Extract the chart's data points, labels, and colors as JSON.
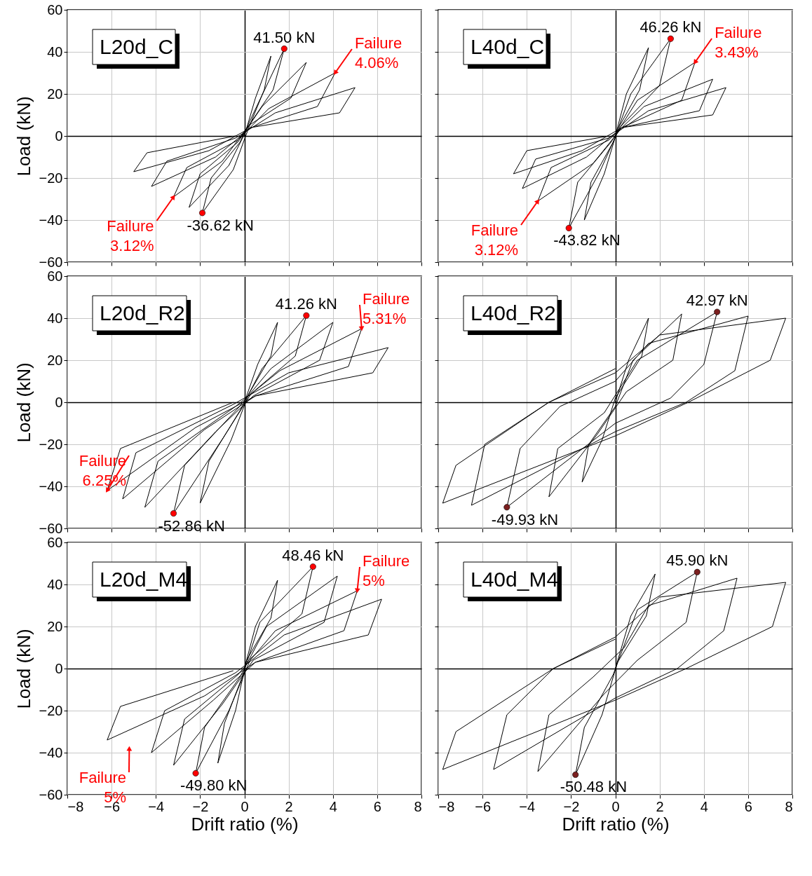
{
  "chart_data": [
    {
      "type": "line",
      "title": "L20d_C",
      "ylabel": "Load (kN)",
      "xlim": [
        -8,
        8
      ],
      "ylim": [
        -60,
        60
      ],
      "xticks": [
        -8,
        -6,
        -4,
        -2,
        0,
        2,
        4,
        6,
        8
      ],
      "yticks": [
        -60,
        -40,
        -20,
        0,
        20,
        40,
        60
      ],
      "grid": true,
      "tick_labels": "y",
      "series": [
        {
          "color": "#000000",
          "x": [
            0,
            0.5,
            1.2,
            0.9,
            0.2,
            -0.5,
            -1.9,
            -1.5,
            -0.2,
            0.6,
            1.8,
            1.3,
            0.2,
            -0.7,
            -2.5,
            -2.0,
            -0.3,
            0.8,
            2.8,
            2.1,
            0.2,
            -1,
            -3.2,
            -2.6,
            -0.3,
            1.1,
            4.1,
            3.3,
            0.3,
            -1.3,
            -4.2,
            -3.5,
            -0.4,
            1.4,
            5,
            4.3,
            0.3,
            -1.6,
            -5,
            -4.4,
            -0.4
          ],
          "values": [
            0,
            18,
            38,
            22,
            4,
            -16,
            -36.62,
            -20,
            -3,
            15,
            41.5,
            22,
            5,
            -14,
            -34,
            -18,
            -3,
            14,
            35,
            18,
            5,
            -12,
            -29,
            -15,
            -2,
            13,
            30,
            14,
            4,
            -10,
            -24,
            -12,
            -1,
            11,
            23,
            11,
            4,
            -7,
            -17,
            -8,
            0
          ]
        },
        {
          "type": "scatter",
          "color": "#ff0000",
          "x": [
            1.8,
            -1.9
          ],
          "values": [
            41.5,
            -36.62
          ]
        }
      ],
      "annotations": [
        {
          "text": "41.50 kN",
          "x": 1.8,
          "y": 41.5
        },
        {
          "text": "-36.62 kN",
          "x": -1.9,
          "y": -36.62
        },
        {
          "text": "Failure\n4.06%",
          "x": 4.1,
          "y": 30
        },
        {
          "text": "Failure\n3.12%",
          "x": -3.2,
          "y": -29
        }
      ]
    },
    {
      "type": "line",
      "title": "L40d_C",
      "xlim": [
        -8,
        8
      ],
      "ylim": [
        -60,
        60
      ],
      "xticks": [
        -8,
        -6,
        -4,
        -2,
        0,
        2,
        4,
        6,
        8
      ],
      "yticks": [
        -60,
        -40,
        -20,
        0,
        20,
        40,
        60
      ],
      "grid": true,
      "tick_labels": false,
      "series": [
        {
          "color": "#000000",
          "x": [
            0,
            0.5,
            1.5,
            1.1,
            0.1,
            -0.5,
            -1.4,
            -1.1,
            -0.1,
            0.7,
            2.5,
            2,
            0.2,
            -0.7,
            -2.1,
            -1.7,
            -0.2,
            1,
            3.6,
            3,
            0.3,
            -1,
            -3.5,
            -2.9,
            -0.3,
            1.3,
            4.4,
            3.8,
            0.3,
            -1.3,
            -4.2,
            -3.6,
            -0.3,
            1.5,
            5,
            4.4,
            0.3,
            -1.5,
            -4.6,
            -4,
            -0.3
          ],
          "values": [
            0,
            20,
            42,
            22,
            3,
            -18,
            -40,
            -22,
            -3,
            20,
            46.26,
            24,
            4,
            -17,
            -43.82,
            -22,
            -3,
            17,
            35,
            17,
            4,
            -13,
            -31,
            -15,
            -2,
            14,
            27,
            12,
            4,
            -10,
            -25,
            -11,
            -1,
            12,
            23,
            10,
            4,
            -7,
            -18,
            -7,
            0
          ]
        },
        {
          "type": "scatter",
          "color": "#ff0000",
          "x": [
            2.5,
            -2.1
          ],
          "values": [
            46.26,
            -43.82
          ]
        }
      ],
      "annotations": [
        {
          "text": "46.26 kN",
          "x": 2.5,
          "y": 46.26
        },
        {
          "text": "-43.82 kN",
          "x": -2.1,
          "y": -43.82
        },
        {
          "text": "Failure\n3.43%",
          "x": 3.6,
          "y": 35
        },
        {
          "text": "Failure\n3.12%",
          "x": -3.5,
          "y": -31
        }
      ]
    },
    {
      "type": "line",
      "title": "L20d_R2",
      "ylabel": "Load (kN)",
      "xlim": [
        -8,
        8
      ],
      "ylim": [
        -60,
        60
      ],
      "xticks": [
        -8,
        -6,
        -4,
        -2,
        0,
        2,
        4,
        6,
        8
      ],
      "yticks": [
        -60,
        -40,
        -20,
        0,
        20,
        40,
        60
      ],
      "grid": true,
      "tick_labels": "y",
      "series": [
        {
          "color": "#000000",
          "x": [
            0,
            0.6,
            1.5,
            1.2,
            0.2,
            -0.6,
            -2,
            -1.6,
            -0.2,
            0.8,
            2.8,
            2.3,
            0.3,
            -0.9,
            -3.2,
            -2.7,
            -0.3,
            1.2,
            4,
            3.4,
            0.4,
            -1.3,
            -4.5,
            -3.9,
            -0.4,
            1.6,
            5.3,
            4.7,
            0.5,
            -1.8,
            -5.5,
            -4.9,
            -0.5,
            2,
            6.5,
            5.8,
            0.5,
            -2.2,
            -6.2,
            -5.6,
            -0.5
          ],
          "values": [
            0,
            18,
            38,
            22,
            4,
            -18,
            -48,
            -28,
            -4,
            16,
            41.26,
            22,
            4,
            -16,
            -52.86,
            -30,
            -3,
            16,
            38,
            20,
            3,
            -14,
            -50,
            -28,
            -2,
            15,
            35,
            17,
            3,
            -13,
            -46,
            -24,
            -1,
            14,
            26,
            14,
            3,
            -12,
            -42,
            -22,
            0
          ]
        },
        {
          "type": "scatter",
          "color": "#ff0000",
          "x": [
            2.8,
            -3.2
          ],
          "values": [
            41.26,
            -52.86
          ]
        }
      ],
      "annotations": [
        {
          "text": "41.26 kN",
          "x": 2.8,
          "y": 41.26
        },
        {
          "text": "-52.86 kN",
          "x": -3.2,
          "y": -52.86
        },
        {
          "text": "Failure\n5.31%",
          "x": 5.3,
          "y": 35
        },
        {
          "text": "Failure\n6.25%",
          "x": -6.2,
          "y": -42
        }
      ]
    },
    {
      "type": "line",
      "title": "L40d_R2",
      "xlim": [
        -8,
        8
      ],
      "ylim": [
        -60,
        60
      ],
      "xticks": [
        -8,
        -6,
        -4,
        -2,
        0,
        2,
        4,
        6,
        8
      ],
      "yticks": [
        -60,
        -40,
        -20,
        0,
        20,
        40,
        60
      ],
      "grid": true,
      "tick_labels": false,
      "series": [
        {
          "color": "#000000",
          "x": [
            0,
            0.6,
            1.5,
            1.2,
            0,
            -0.6,
            -1.5,
            -1.2,
            0,
            0.8,
            3,
            2.6,
            0.5,
            -0.8,
            -3,
            -2.6,
            -0.5,
            1,
            4.6,
            4,
            2.5,
            0,
            -4.9,
            -4.3,
            -2.5,
            0,
            1.5,
            6,
            5.4,
            3.2,
            0,
            -6.5,
            -5.9,
            -3,
            0,
            2,
            7.7,
            7,
            3.3,
            0,
            -7.8,
            -7.2,
            -3,
            0
          ],
          "values": [
            0,
            20,
            40,
            22,
            2,
            -18,
            -38,
            -20,
            -2,
            20,
            42,
            20,
            5,
            -15,
            -45,
            -22,
            -5,
            20,
            42.97,
            18,
            2,
            -10,
            -49.93,
            -22,
            -2,
            10,
            28,
            41,
            15,
            0,
            -14,
            -49,
            -20,
            0,
            14,
            32,
            40,
            20,
            0,
            -16,
            -48,
            -30,
            0,
            16
          ]
        },
        {
          "type": "scatter",
          "color": "#7b1f1f",
          "x": [
            4.6,
            -4.9
          ],
          "values": [
            42.97,
            -49.93
          ]
        }
      ],
      "annotations": [
        {
          "text": "42.97 kN",
          "x": 4.6,
          "y": 42.97
        },
        {
          "text": "-49.93 kN",
          "x": -4.9,
          "y": -49.93
        }
      ]
    },
    {
      "type": "line",
      "title": "L20d_M4",
      "xlabel": "Drift ratio (%)",
      "ylabel": "Load (kN)",
      "xlim": [
        -8,
        8
      ],
      "ylim": [
        -60,
        60
      ],
      "xticks": [
        -8,
        -6,
        -4,
        -2,
        0,
        2,
        4,
        6,
        8
      ],
      "yticks": [
        -60,
        -40,
        -20,
        0,
        20,
        40,
        60
      ],
      "grid": true,
      "series": [
        {
          "color": "#000000",
          "x": [
            0,
            0.5,
            1.5,
            1.2,
            0.1,
            -0.4,
            -1.2,
            -0.9,
            -0.1,
            0.7,
            3.1,
            2.6,
            0.3,
            -0.7,
            -2.2,
            -1.8,
            -0.2,
            1,
            4.2,
            3.6,
            0.4,
            -1,
            -3.2,
            -2.7,
            -0.3,
            1.4,
            5.1,
            4.5,
            0.5,
            -1.4,
            -4.2,
            -3.6,
            -0.4,
            1.8,
            6.2,
            5.6,
            0.5,
            -1.8,
            -6.2,
            -5.6,
            -0.5
          ],
          "values": [
            0,
            20,
            42,
            24,
            4,
            -20,
            -45,
            -26,
            -4,
            22,
            48.46,
            26,
            5,
            -20,
            -49.8,
            -28,
            -4,
            20,
            44,
            22,
            4,
            -17,
            -46,
            -24,
            -3,
            18,
            37,
            18,
            3,
            -15,
            -40,
            -20,
            -2,
            16,
            33,
            16,
            3,
            -13,
            -34,
            -18,
            -1
          ]
        },
        {
          "type": "scatter",
          "color": "#ff0000",
          "x": [
            3.1,
            -2.2
          ],
          "values": [
            48.46,
            -49.8
          ]
        }
      ],
      "annotations": [
        {
          "text": "48.46 kN",
          "x": 3.1,
          "y": 48.46
        },
        {
          "text": "-49.80 kN",
          "x": -2.2,
          "y": -49.8
        },
        {
          "text": "Failure\n5%",
          "x": 5.1,
          "y": 37
        },
        {
          "text": "Failure\n5%",
          "x": -5.2,
          "y": -38
        }
      ]
    },
    {
      "type": "line",
      "title": "L40d_M4",
      "xlabel": "Drift ratio (%)",
      "xlim": [
        -8,
        8
      ],
      "ylim": [
        -60,
        60
      ],
      "xticks": [
        -8,
        -6,
        -4,
        -2,
        0,
        2,
        4,
        6,
        8
      ],
      "yticks": [
        -60,
        -40,
        -20,
        0,
        20,
        40,
        60
      ],
      "grid": true,
      "tick_labels": "x",
      "series": [
        {
          "color": "#000000",
          "x": [
            0,
            0.7,
            1.8,
            1.4,
            0.1,
            -0.6,
            -1.8,
            -1.4,
            -0.1,
            1,
            3.7,
            3.2,
            1,
            -0.5,
            -3.5,
            -3,
            -1,
            0.4,
            1.5,
            5.5,
            4.9,
            2.8,
            0,
            -5.5,
            -4.9,
            -2.8,
            0,
            2,
            7.7,
            7.1,
            3.2,
            0,
            -7.8,
            -7.2,
            -2.8,
            0
          ],
          "values": [
            0,
            25,
            45,
            25,
            3,
            -22,
            -50.48,
            -28,
            -3,
            28,
            45.9,
            22,
            4,
            -12,
            -49,
            -22,
            -4,
            10,
            30,
            43,
            18,
            0,
            -14,
            -48,
            -22,
            0,
            15,
            34,
            41,
            20,
            0,
            -15,
            -48,
            -30,
            0,
            14
          ]
        },
        {
          "type": "scatter",
          "color": "#7b1f1f",
          "x": [
            3.7,
            -1.8
          ],
          "values": [
            45.9,
            -50.48
          ]
        }
      ],
      "annotations": [
        {
          "text": "45.90 kN",
          "x": 3.7,
          "y": 45.9
        },
        {
          "text": "-50.48 kN",
          "x": -1.8,
          "y": -50.48
        }
      ]
    }
  ]
}
